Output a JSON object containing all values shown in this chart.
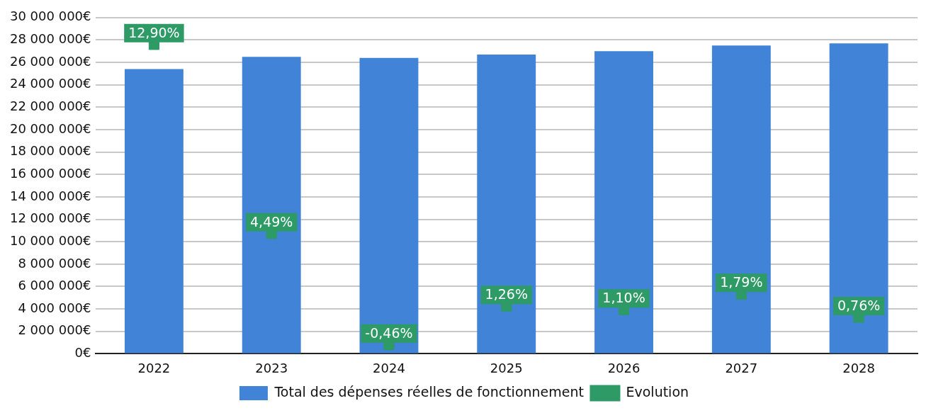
{
  "chart_data": {
    "type": "bar",
    "categories": [
      "2022",
      "2023",
      "2024",
      "2025",
      "2026",
      "2027",
      "2028"
    ],
    "series": [
      {
        "name": "Total des dépenses réelles de fonctionnement",
        "color": "#4183d7",
        "values": [
          25400000,
          26500000,
          26400000,
          26700000,
          27000000,
          27500000,
          27700000
        ]
      },
      {
        "name": "Evolution",
        "type": "scatter",
        "axis": "y2",
        "color": "#2e9a66",
        "marker": "square",
        "values": [
          12.9,
          4.49,
          -0.46,
          1.26,
          1.1,
          1.79,
          0.76
        ],
        "value_labels": [
          "12,90%",
          "4,49%",
          "-0,46%",
          "1,26%",
          "1,10%",
          "1,79%",
          "0,76%"
        ]
      }
    ],
    "ylim": [
      0,
      30000000
    ],
    "yticks": [
      {
        "value": 0,
        "label": "0€"
      },
      {
        "value": 2000000,
        "label": "2 000 000€"
      },
      {
        "value": 4000000,
        "label": "4 000 000€"
      },
      {
        "value": 6000000,
        "label": "6 000 000€"
      },
      {
        "value": 8000000,
        "label": "8 000 000€"
      },
      {
        "value": 10000000,
        "label": "10 000 000€"
      },
      {
        "value": 12000000,
        "label": "12 000 000€"
      },
      {
        "value": 14000000,
        "label": "14 000 000€"
      },
      {
        "value": 16000000,
        "label": "16 000 000€"
      },
      {
        "value": 18000000,
        "label": "18 000 000€"
      },
      {
        "value": 20000000,
        "label": "20 000 000€"
      },
      {
        "value": 22000000,
        "label": "22 000 000€"
      },
      {
        "value": 24000000,
        "label": "24 000 000€"
      },
      {
        "value": 26000000,
        "label": "26 000 000€"
      },
      {
        "value": 28000000,
        "label": "28 000 000€"
      },
      {
        "value": 30000000,
        "label": "30 000 000€"
      }
    ],
    "y2lim": [
      -0.86,
      14.1
    ],
    "tick_labels": "xy",
    "grid": "y",
    "legend": "bottom"
  }
}
